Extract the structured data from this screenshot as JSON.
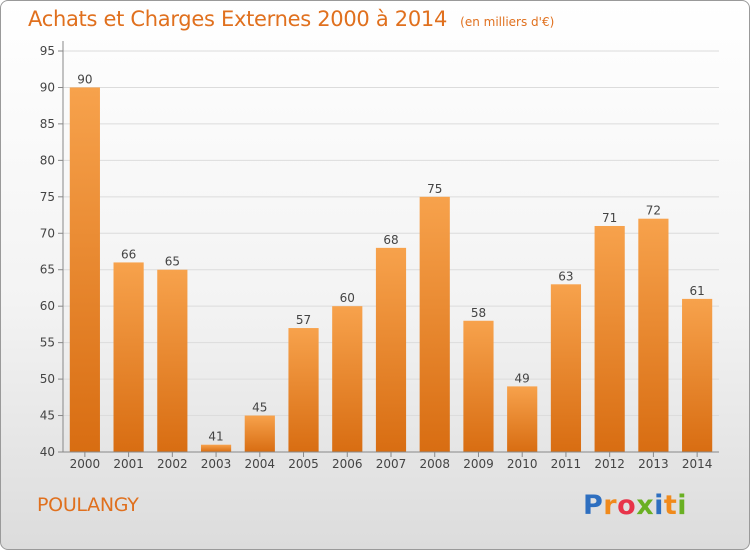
{
  "header": {
    "title": "Achats et Charges Externes 2000 à 2014",
    "unit": "(en milliers d'€)"
  },
  "footer": {
    "commune": "POULANGY",
    "logo_letters": [
      "P",
      "r",
      "o",
      "x",
      "i",
      "t",
      "i"
    ],
    "logo_colors": [
      "#2e6fc0",
      "#f08a1c",
      "#e8344a",
      "#6ab023",
      "#2e6fc0",
      "#f08a1c",
      "#6ab023"
    ]
  },
  "chart_data": {
    "type": "bar",
    "title": "Achats et Charges Externes 2000 à 2014",
    "subtitle": "(en milliers d'€)",
    "categories": [
      "2000",
      "2001",
      "2002",
      "2003",
      "2004",
      "2005",
      "2006",
      "2007",
      "2008",
      "2009",
      "2010",
      "2011",
      "2012",
      "2013",
      "2014"
    ],
    "values": [
      90,
      66,
      65,
      41,
      45,
      57,
      60,
      68,
      75,
      58,
      49,
      63,
      71,
      72,
      61
    ],
    "ylim": [
      40,
      95
    ],
    "yticks": [
      40,
      45,
      50,
      55,
      60,
      65,
      70,
      75,
      80,
      85,
      90,
      95
    ],
    "grid": true,
    "bar_color": "#f0892a"
  }
}
